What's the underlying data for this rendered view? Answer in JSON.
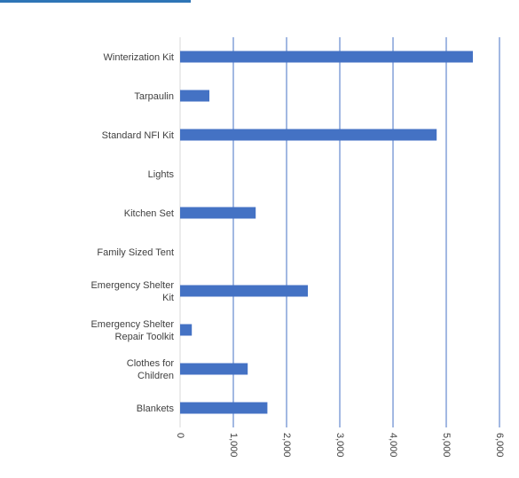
{
  "chart_data": {
    "type": "bar",
    "orientation": "horizontal",
    "categories": [
      "Winterization Kit",
      "Tarpaulin",
      "Standard NFI Kit",
      "Lights",
      "Kitchen Set",
      "Family Sized Tent",
      "Emergency Shelter Kit",
      "Emergency Shelter Repair Toolkit",
      "Clothes for Children",
      "Blankets"
    ],
    "category_label_lines": [
      [
        "Winterization Kit"
      ],
      [
        "Tarpaulin"
      ],
      [
        "Standard NFI Kit"
      ],
      [
        "Lights"
      ],
      [
        "Kitchen Set"
      ],
      [
        "Family Sized Tent"
      ],
      [
        "Emergency Shelter",
        "Kit"
      ],
      [
        "Emergency Shelter",
        "Repair Toolkit"
      ],
      [
        "Clothes for",
        "Children"
      ],
      [
        "Blankets"
      ]
    ],
    "values": [
      5500,
      550,
      4820,
      0,
      1420,
      0,
      2400,
      220,
      1270,
      1640
    ],
    "xlim": [
      0,
      6000
    ],
    "xticks": [
      0,
      1000,
      2000,
      3000,
      4000,
      5000,
      6000
    ],
    "xtick_labels": [
      "0",
      "1,000",
      "2,000",
      "3,000",
      "4,000",
      "5,000",
      "6,000"
    ],
    "grid": "vertical",
    "legend": "none",
    "title": "",
    "xlabel": "",
    "ylabel": "",
    "colors": {
      "bar": "#4472c4",
      "grid": "#4472c4",
      "axis": "#d9d9d9",
      "text": "#404040",
      "accent": "#2e75b6"
    }
  }
}
